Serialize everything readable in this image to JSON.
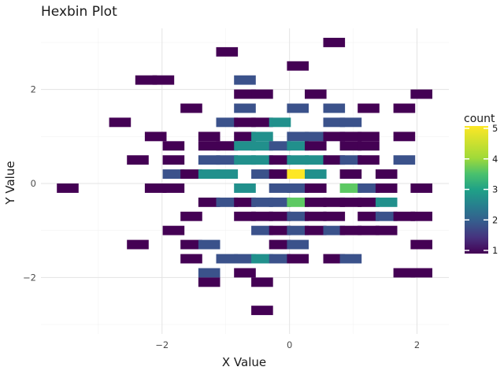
{
  "chart_data": {
    "type": "heatmap",
    "title": "Hexbin Plot",
    "xlabel": "X Value",
    "ylabel": "Y Value",
    "xlim": [
      -3.9,
      2.5
    ],
    "ylim": [
      -3.2,
      3.3
    ],
    "x_ticks": [
      -2,
      0,
      2
    ],
    "y_ticks": [
      -2,
      0,
      2
    ],
    "x_tick_labels": [
      "−2",
      "0",
      "2"
    ],
    "y_tick_labels": [
      "−2",
      "0",
      "2"
    ],
    "grid": true,
    "bin_width": [
      0.4,
      0.2
    ],
    "legend": {
      "title": "count",
      "range": [
        1,
        5
      ],
      "ticks": [
        1,
        2,
        3,
        4,
        5
      ],
      "placement": "right",
      "colormap": "viridis"
    },
    "colors": [
      "#440154",
      "#3b528b",
      "#21908c",
      "#5dc963",
      "#fde725"
    ],
    "bins": [
      {
        "x": 0.7,
        "y": 3.0,
        "count": 1
      },
      {
        "x": -0.98,
        "y": 2.8,
        "count": 1
      },
      {
        "x": 0.13,
        "y": 2.5,
        "count": 1
      },
      {
        "x": -2.25,
        "y": 2.2,
        "count": 1
      },
      {
        "x": -1.98,
        "y": 2.2,
        "count": 1
      },
      {
        "x": -0.7,
        "y": 2.2,
        "count": 2
      },
      {
        "x": -0.7,
        "y": 1.9,
        "count": 1
      },
      {
        "x": -0.43,
        "y": 1.9,
        "count": 1
      },
      {
        "x": 0.41,
        "y": 1.9,
        "count": 1
      },
      {
        "x": 2.07,
        "y": 1.9,
        "count": 1
      },
      {
        "x": -1.54,
        "y": 1.6,
        "count": 1
      },
      {
        "x": -0.7,
        "y": 1.6,
        "count": 2
      },
      {
        "x": 0.13,
        "y": 1.6,
        "count": 2
      },
      {
        "x": 0.7,
        "y": 1.6,
        "count": 2
      },
      {
        "x": 1.24,
        "y": 1.6,
        "count": 1
      },
      {
        "x": 1.8,
        "y": 1.6,
        "count": 1
      },
      {
        "x": -2.66,
        "y": 1.3,
        "count": 1
      },
      {
        "x": -0.98,
        "y": 1.3,
        "count": 2
      },
      {
        "x": -0.7,
        "y": 1.3,
        "count": 1
      },
      {
        "x": -0.43,
        "y": 1.3,
        "count": 1
      },
      {
        "x": -0.15,
        "y": 1.3,
        "count": 3
      },
      {
        "x": 0.7,
        "y": 1.3,
        "count": 2
      },
      {
        "x": 0.96,
        "y": 1.3,
        "count": 2
      },
      {
        "x": -2.1,
        "y": 1.0,
        "count": 1
      },
      {
        "x": -1.26,
        "y": 1.0,
        "count": 1
      },
      {
        "x": -0.7,
        "y": 1.0,
        "count": 1
      },
      {
        "x": -0.43,
        "y": 1.0,
        "count": 3
      },
      {
        "x": 0.13,
        "y": 1.0,
        "count": 2
      },
      {
        "x": 0.41,
        "y": 1.0,
        "count": 2
      },
      {
        "x": 0.7,
        "y": 1.0,
        "count": 1
      },
      {
        "x": 0.96,
        "y": 1.0,
        "count": 1
      },
      {
        "x": 1.24,
        "y": 1.0,
        "count": 1
      },
      {
        "x": 1.8,
        "y": 1.0,
        "count": 1
      },
      {
        "x": -1.82,
        "y": 0.8,
        "count": 1
      },
      {
        "x": -1.26,
        "y": 0.8,
        "count": 1
      },
      {
        "x": -0.98,
        "y": 0.8,
        "count": 1
      },
      {
        "x": -0.7,
        "y": 0.8,
        "count": 3
      },
      {
        "x": -0.43,
        "y": 0.8,
        "count": 3
      },
      {
        "x": -0.15,
        "y": 0.8,
        "count": 2
      },
      {
        "x": 0.13,
        "y": 0.8,
        "count": 3
      },
      {
        "x": 0.41,
        "y": 0.8,
        "count": 1
      },
      {
        "x": 0.96,
        "y": 0.8,
        "count": 1
      },
      {
        "x": 1.24,
        "y": 0.8,
        "count": 1
      },
      {
        "x": -2.38,
        "y": 0.5,
        "count": 1
      },
      {
        "x": -1.82,
        "y": 0.5,
        "count": 1
      },
      {
        "x": -1.26,
        "y": 0.5,
        "count": 2
      },
      {
        "x": -0.98,
        "y": 0.5,
        "count": 2
      },
      {
        "x": -0.7,
        "y": 0.5,
        "count": 3
      },
      {
        "x": -0.43,
        "y": 0.5,
        "count": 3
      },
      {
        "x": -0.15,
        "y": 0.5,
        "count": 1
      },
      {
        "x": 0.13,
        "y": 0.5,
        "count": 3
      },
      {
        "x": 0.41,
        "y": 0.5,
        "count": 3
      },
      {
        "x": 0.7,
        "y": 0.5,
        "count": 1
      },
      {
        "x": 0.96,
        "y": 0.5,
        "count": 2
      },
      {
        "x": 1.24,
        "y": 0.5,
        "count": 1
      },
      {
        "x": 1.8,
        "y": 0.5,
        "count": 2
      },
      {
        "x": -1.82,
        "y": 0.2,
        "count": 2
      },
      {
        "x": -1.54,
        "y": 0.2,
        "count": 1
      },
      {
        "x": -1.26,
        "y": 0.2,
        "count": 3
      },
      {
        "x": -0.98,
        "y": 0.2,
        "count": 3
      },
      {
        "x": -0.43,
        "y": 0.2,
        "count": 2
      },
      {
        "x": -0.15,
        "y": 0.2,
        "count": 1
      },
      {
        "x": 0.13,
        "y": 0.2,
        "count": 5
      },
      {
        "x": 0.41,
        "y": 0.2,
        "count": 3
      },
      {
        "x": 0.96,
        "y": 0.2,
        "count": 1
      },
      {
        "x": 1.52,
        "y": 0.2,
        "count": 1
      },
      {
        "x": -3.48,
        "y": -0.1,
        "count": 1
      },
      {
        "x": -2.1,
        "y": -0.1,
        "count": 1
      },
      {
        "x": -1.82,
        "y": -0.1,
        "count": 1
      },
      {
        "x": -0.7,
        "y": -0.1,
        "count": 3
      },
      {
        "x": -0.15,
        "y": -0.1,
        "count": 2
      },
      {
        "x": 0.13,
        "y": -0.1,
        "count": 2
      },
      {
        "x": 0.41,
        "y": -0.1,
        "count": 1
      },
      {
        "x": 0.96,
        "y": -0.1,
        "count": 4
      },
      {
        "x": 1.24,
        "y": -0.1,
        "count": 2
      },
      {
        "x": 1.52,
        "y": -0.1,
        "count": 1
      },
      {
        "x": 2.07,
        "y": -0.1,
        "count": 1
      },
      {
        "x": -1.26,
        "y": -0.4,
        "count": 1
      },
      {
        "x": -0.98,
        "y": -0.4,
        "count": 2
      },
      {
        "x": -0.7,
        "y": -0.4,
        "count": 1
      },
      {
        "x": -0.43,
        "y": -0.4,
        "count": 2
      },
      {
        "x": -0.15,
        "y": -0.4,
        "count": 2
      },
      {
        "x": 0.13,
        "y": -0.4,
        "count": 4
      },
      {
        "x": 0.41,
        "y": -0.4,
        "count": 1
      },
      {
        "x": 0.7,
        "y": -0.4,
        "count": 1
      },
      {
        "x": 0.96,
        "y": -0.4,
        "count": 1
      },
      {
        "x": 1.24,
        "y": -0.4,
        "count": 1
      },
      {
        "x": 1.52,
        "y": -0.4,
        "count": 3
      },
      {
        "x": -1.54,
        "y": -0.7,
        "count": 1
      },
      {
        "x": -0.7,
        "y": -0.7,
        "count": 1
      },
      {
        "x": -0.43,
        "y": -0.7,
        "count": 1
      },
      {
        "x": -0.15,
        "y": -0.7,
        "count": 1
      },
      {
        "x": 0.13,
        "y": -0.7,
        "count": 2
      },
      {
        "x": 0.41,
        "y": -0.7,
        "count": 1
      },
      {
        "x": 0.7,
        "y": -0.7,
        "count": 1
      },
      {
        "x": 1.24,
        "y": -0.7,
        "count": 1
      },
      {
        "x": 1.52,
        "y": -0.7,
        "count": 2
      },
      {
        "x": 1.8,
        "y": -0.7,
        "count": 1
      },
      {
        "x": 2.07,
        "y": -0.7,
        "count": 1
      },
      {
        "x": -1.82,
        "y": -1.0,
        "count": 1
      },
      {
        "x": -0.43,
        "y": -1.0,
        "count": 2
      },
      {
        "x": -0.15,
        "y": -1.0,
        "count": 1
      },
      {
        "x": 0.13,
        "y": -1.0,
        "count": 2
      },
      {
        "x": 0.41,
        "y": -1.0,
        "count": 1
      },
      {
        "x": 0.7,
        "y": -1.0,
        "count": 2
      },
      {
        "x": 0.96,
        "y": -1.0,
        "count": 1
      },
      {
        "x": 1.24,
        "y": -1.0,
        "count": 1
      },
      {
        "x": 1.52,
        "y": -1.0,
        "count": 1
      },
      {
        "x": -2.38,
        "y": -1.3,
        "count": 1
      },
      {
        "x": -1.54,
        "y": -1.3,
        "count": 1
      },
      {
        "x": -1.26,
        "y": -1.3,
        "count": 2
      },
      {
        "x": -0.15,
        "y": -1.3,
        "count": 1
      },
      {
        "x": 0.13,
        "y": -1.3,
        "count": 2
      },
      {
        "x": 2.07,
        "y": -1.3,
        "count": 1
      },
      {
        "x": -1.54,
        "y": -1.6,
        "count": 1
      },
      {
        "x": -0.98,
        "y": -1.6,
        "count": 2
      },
      {
        "x": -0.7,
        "y": -1.6,
        "count": 2
      },
      {
        "x": -0.43,
        "y": -1.6,
        "count": 3
      },
      {
        "x": -0.15,
        "y": -1.6,
        "count": 2
      },
      {
        "x": 0.13,
        "y": -1.6,
        "count": 1
      },
      {
        "x": 0.7,
        "y": -1.6,
        "count": 1
      },
      {
        "x": 0.96,
        "y": -1.6,
        "count": 2
      },
      {
        "x": -1.26,
        "y": -1.9,
        "count": 2
      },
      {
        "x": -0.7,
        "y": -1.9,
        "count": 1
      },
      {
        "x": 1.8,
        "y": -1.9,
        "count": 1
      },
      {
        "x": 2.07,
        "y": -1.9,
        "count": 1
      },
      {
        "x": -1.26,
        "y": -2.1,
        "count": 1
      },
      {
        "x": -0.43,
        "y": -2.1,
        "count": 1
      },
      {
        "x": -0.43,
        "y": -2.7,
        "count": 1
      }
    ]
  }
}
